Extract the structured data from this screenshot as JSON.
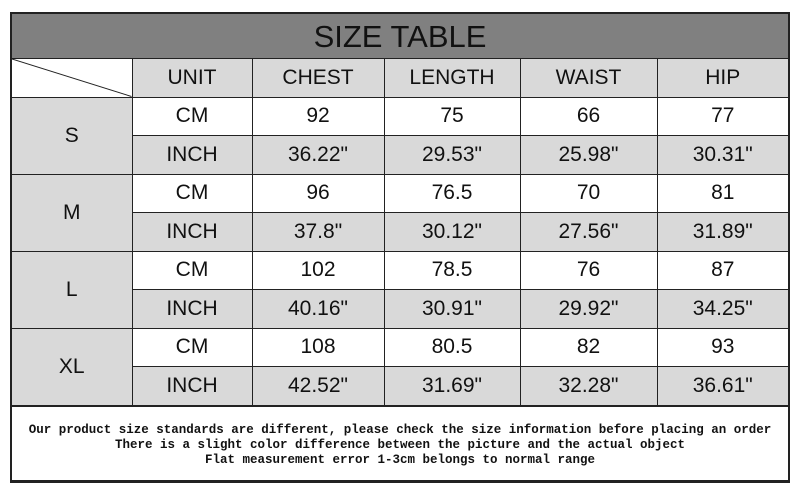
{
  "title": "SIZE TABLE",
  "headers": [
    "UNIT",
    "CHEST",
    "LENGTH",
    "WAIST",
    "HIP"
  ],
  "sizes": [
    {
      "size": "S",
      "rows": [
        [
          "CM",
          "92",
          "75",
          "66",
          "77"
        ],
        [
          "INCH",
          "36.22\"",
          "29.53\"",
          "25.98\"",
          "30.31\""
        ]
      ]
    },
    {
      "size": "M",
      "rows": [
        [
          "CM",
          "96",
          "76.5",
          "70",
          "81"
        ],
        [
          "INCH",
          "37.8\"",
          "30.12\"",
          "27.56\"",
          "31.89\""
        ]
      ]
    },
    {
      "size": "L",
      "rows": [
        [
          "CM",
          "102",
          "78.5",
          "76",
          "87"
        ],
        [
          "INCH",
          "40.16\"",
          "30.91\"",
          "29.92\"",
          "34.25\""
        ]
      ]
    },
    {
      "size": "XL",
      "rows": [
        [
          "CM",
          "108",
          "80.5",
          "82",
          "93"
        ],
        [
          "INCH",
          "42.52\"",
          "31.69\"",
          "32.28\"",
          "36.61\""
        ]
      ]
    }
  ],
  "notes": [
    "Our product size standards are different, please check the size information before placing an order",
    "There is a slight color difference between the picture and the actual object",
    "Flat measurement error 1-3cm belongs to normal range"
  ],
  "colors": {
    "title_bg": "#808080",
    "cell_gray": "#d9d9d9",
    "border": "#222222"
  }
}
